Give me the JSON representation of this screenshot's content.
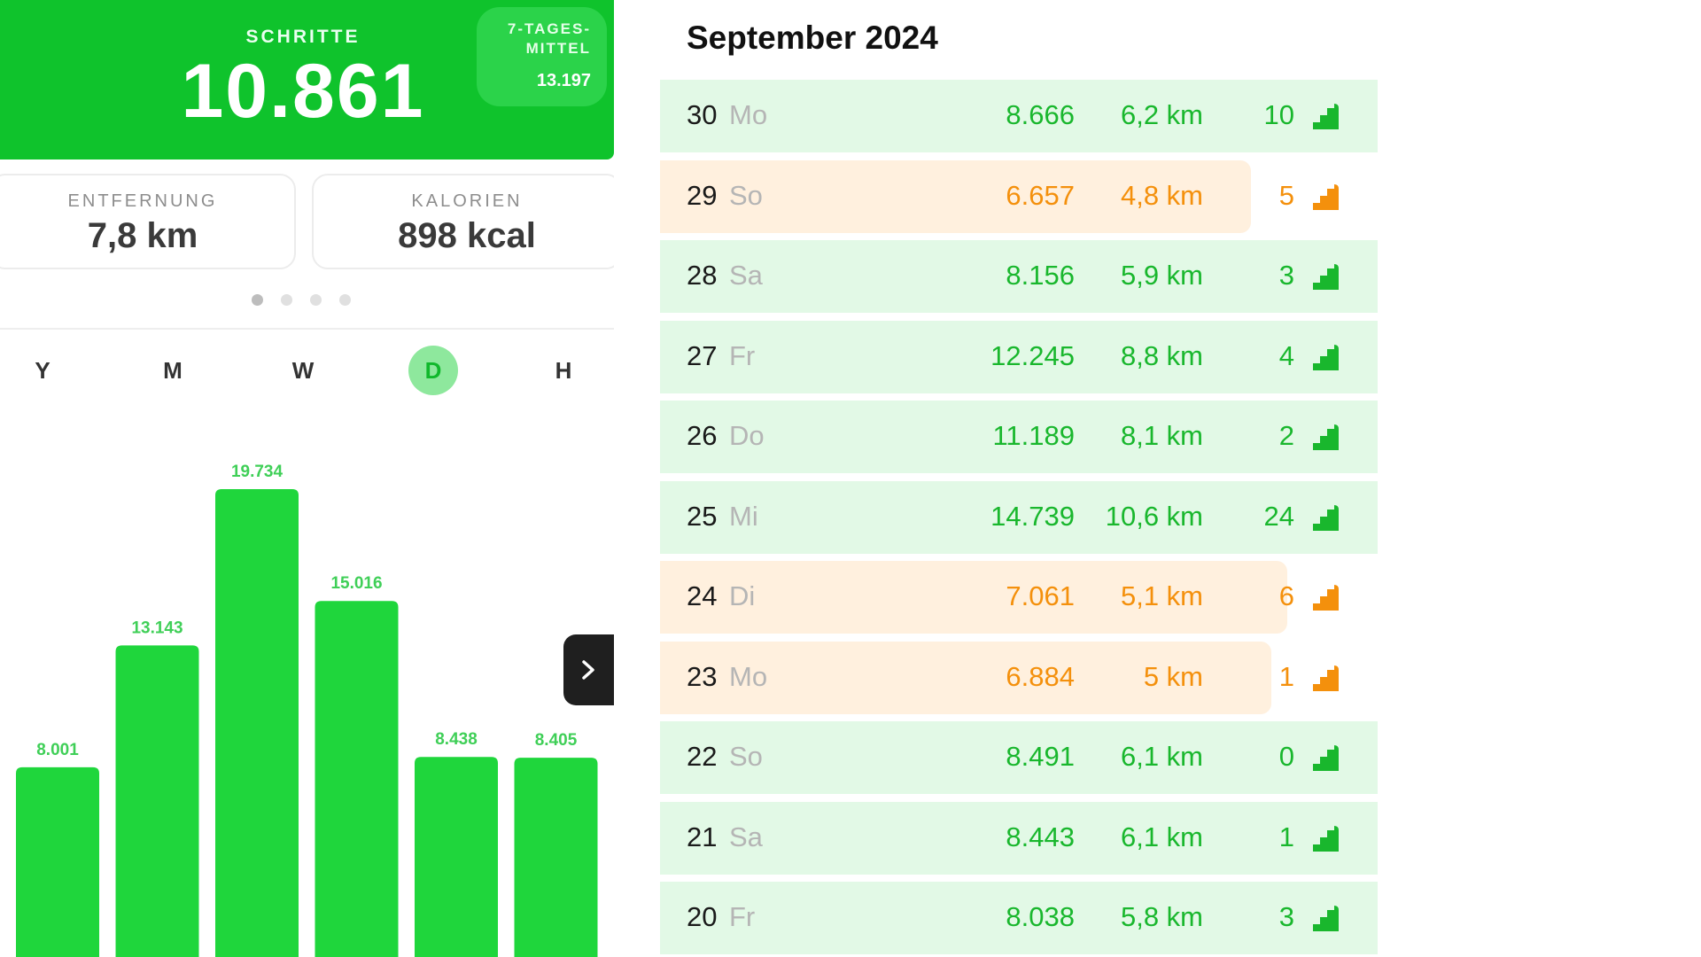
{
  "colors": {
    "green": "#19b72d",
    "orange": "#f4900c",
    "bar": "#1fd63c",
    "header": "#0fc32c"
  },
  "header": {
    "steps_label": "SCHRITTE",
    "steps_value": "10.861",
    "avg_label_line1": "7-TAGES-",
    "avg_label_line2": "MITTEL",
    "avg_value": "13.197"
  },
  "stats": {
    "distance": {
      "label": "ENTFERNUNG",
      "value": "7,8 km"
    },
    "calories": {
      "label": "KALORIEN",
      "value": "898 kcal"
    }
  },
  "pager": {
    "pages": 4,
    "active": 0
  },
  "period_tabs": [
    {
      "label": "Y",
      "active": false
    },
    {
      "label": "M",
      "active": false
    },
    {
      "label": "W",
      "active": false
    },
    {
      "label": "D",
      "active": true
    },
    {
      "label": "H",
      "active": false
    }
  ],
  "chart_data": {
    "type": "bar",
    "values": [
      8001,
      13143,
      19734,
      15016,
      8438,
      8405
    ],
    "labels": [
      "8.001",
      "13.143",
      "19.734",
      "15.016",
      "8.438",
      "8.405"
    ]
  },
  "next_button_icon": "chevron-right-icon",
  "month": {
    "title": "September 2024",
    "days": [
      {
        "day": "30",
        "weekday": "Mo",
        "steps": "8.666",
        "distance": "6,2 km",
        "floors": "10",
        "status": "green"
      },
      {
        "day": "29",
        "weekday": "So",
        "steps": "6.657",
        "distance": "4,8 km",
        "floors": "5",
        "status": "orange",
        "fill": 0.824
      },
      {
        "day": "28",
        "weekday": "Sa",
        "steps": "8.156",
        "distance": "5,9 km",
        "floors": "3",
        "status": "green"
      },
      {
        "day": "27",
        "weekday": "Fr",
        "steps": "12.245",
        "distance": "8,8 km",
        "floors": "4",
        "status": "green"
      },
      {
        "day": "26",
        "weekday": "Do",
        "steps": "11.189",
        "distance": "8,1 km",
        "floors": "2",
        "status": "green"
      },
      {
        "day": "25",
        "weekday": "Mi",
        "steps": "14.739",
        "distance": "10,6 km",
        "floors": "24",
        "status": "green"
      },
      {
        "day": "24",
        "weekday": "Di",
        "steps": "7.061",
        "distance": "5,1 km",
        "floors": "6",
        "status": "orange",
        "fill": 0.874
      },
      {
        "day": "23",
        "weekday": "Mo",
        "steps": "6.884",
        "distance": "5 km",
        "floors": "1",
        "status": "orange",
        "fill": 0.852
      },
      {
        "day": "22",
        "weekday": "So",
        "steps": "8.491",
        "distance": "6,1 km",
        "floors": "0",
        "status": "green"
      },
      {
        "day": "21",
        "weekday": "Sa",
        "steps": "8.443",
        "distance": "6,1 km",
        "floors": "1",
        "status": "green"
      },
      {
        "day": "20",
        "weekday": "Fr",
        "steps": "8.038",
        "distance": "5,8 km",
        "floors": "3",
        "status": "green"
      }
    ]
  }
}
